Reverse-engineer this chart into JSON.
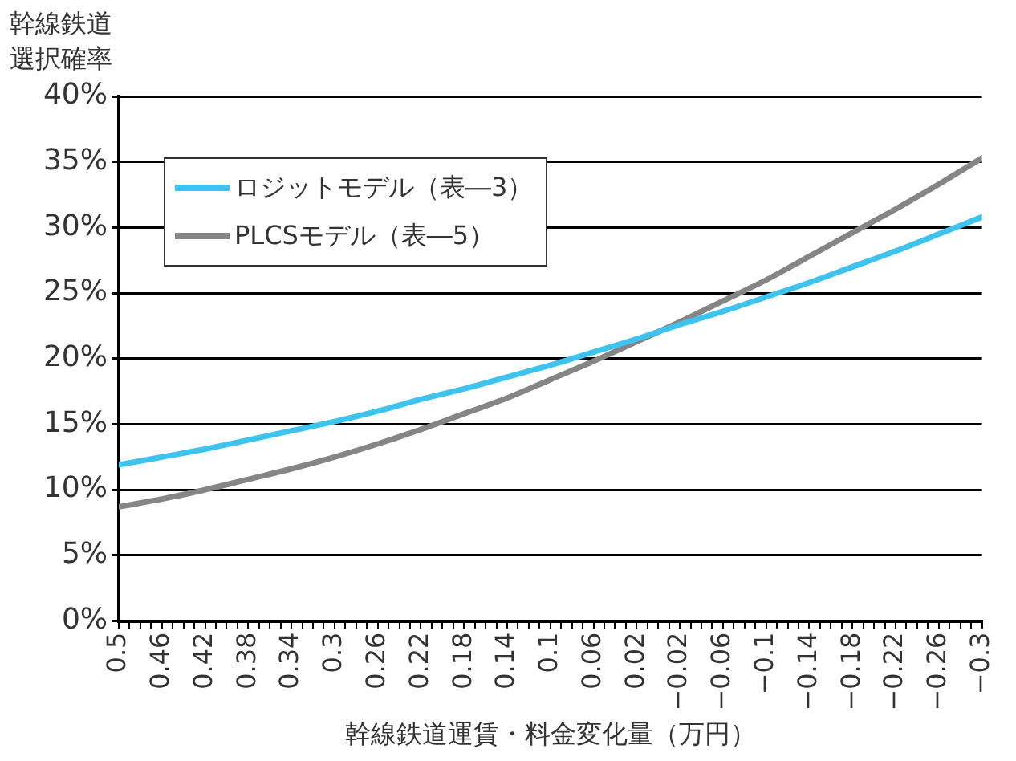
{
  "chart_data": {
    "type": "line",
    "ylabel": "幹線鉄道選択確率",
    "xlabel": "幹線鉄道運賃・料金変化量（万円）",
    "x": [
      0.5,
      0.46,
      0.42,
      0.38,
      0.34,
      0.3,
      0.26,
      0.22,
      0.18,
      0.14,
      0.1,
      0.06,
      0.02,
      -0.02,
      -0.06,
      -0.1,
      -0.14,
      -0.18,
      -0.22,
      -0.26,
      -0.3
    ],
    "series": [
      {
        "name": "ロジットモデル（表―3）",
        "color": "#3ec3ee",
        "values": [
          11.9,
          12.5,
          13.1,
          13.8,
          14.5,
          15.2,
          16.0,
          16.9,
          17.7,
          18.6,
          19.5,
          20.5,
          21.5,
          22.6,
          23.6,
          24.7,
          25.8,
          27.0,
          28.2,
          29.5,
          30.8
        ]
      },
      {
        "name": "PLCSモデル（表―5）",
        "color": "#858585",
        "values": [
          8.7,
          9.3,
          10.0,
          10.8,
          11.6,
          12.5,
          13.5,
          14.6,
          15.8,
          17.0,
          18.4,
          19.8,
          21.3,
          22.8,
          24.4,
          26.0,
          27.8,
          29.6,
          31.4,
          33.3,
          35.3
        ]
      }
    ],
    "xlim": [
      0.5,
      -0.3
    ],
    "xticks": [
      0.5,
      {
        "value": 0.49,
        "label": null
      },
      {
        "value": 0.48,
        "label": null
      },
      {
        "value": 0.47,
        "label": null
      },
      0.46,
      {
        "value": 0.45,
        "label": null
      },
      {
        "value": 0.44,
        "label": null
      },
      {
        "value": 0.43,
        "label": null
      },
      0.42,
      {
        "value": 0.41,
        "label": null
      },
      {
        "value": 0.4,
        "label": null
      },
      {
        "value": 0.39,
        "label": null
      },
      0.38,
      {
        "value": 0.37,
        "label": null
      },
      {
        "value": 0.36,
        "label": null
      },
      {
        "value": 0.35,
        "label": null
      },
      0.34,
      {
        "value": 0.33,
        "label": null
      },
      {
        "value": 0.32,
        "label": null
      },
      {
        "value": 0.31,
        "label": null
      },
      0.3,
      {
        "value": 0.29,
        "label": null
      },
      {
        "value": 0.28,
        "label": null
      },
      {
        "value": 0.27,
        "label": null
      },
      0.26,
      {
        "value": 0.25,
        "label": null
      },
      {
        "value": 0.24,
        "label": null
      },
      {
        "value": 0.23,
        "label": null
      },
      0.22,
      {
        "value": 0.21,
        "label": null
      },
      {
        "value": 0.2,
        "label": null
      },
      {
        "value": 0.19,
        "label": null
      },
      0.18,
      {
        "value": 0.17,
        "label": null
      },
      {
        "value": 0.16,
        "label": null
      },
      {
        "value": 0.15,
        "label": null
      },
      0.14,
      {
        "value": 0.13,
        "label": null
      },
      {
        "value": 0.12,
        "label": null
      },
      {
        "value": 0.11,
        "label": null
      },
      0.1,
      {
        "value": 0.09,
        "label": null
      },
      {
        "value": 0.08,
        "label": null
      },
      {
        "value": 0.07,
        "label": null
      },
      0.06,
      {
        "value": 0.05,
        "label": null
      },
      {
        "value": 0.04,
        "label": null
      },
      {
        "value": 0.03,
        "label": null
      },
      0.02,
      {
        "value": 0.01,
        "label": null
      },
      {
        "value": 0,
        "label": null
      },
      {
        "value": -0.01,
        "label": null
      },
      {
        "value": -0.02,
        "label": "−0.02"
      },
      {
        "value": -0.03,
        "label": null
      },
      {
        "value": -0.04,
        "label": null
      },
      {
        "value": -0.05,
        "label": null
      },
      {
        "value": -0.06,
        "label": "−0.06"
      },
      {
        "value": -0.07,
        "label": null
      },
      {
        "value": -0.08,
        "label": null
      },
      {
        "value": -0.09,
        "label": null
      },
      {
        "value": -0.1,
        "label": "−0.1"
      },
      {
        "value": -0.11,
        "label": null
      },
      {
        "value": -0.12,
        "label": null
      },
      {
        "value": -0.13,
        "label": null
      },
      {
        "value": -0.14,
        "label": "−0.14"
      },
      {
        "value": -0.15,
        "label": null
      },
      {
        "value": -0.16,
        "label": null
      },
      {
        "value": -0.17,
        "label": null
      },
      {
        "value": -0.18,
        "label": "−0.18"
      },
      {
        "value": -0.19,
        "label": null
      },
      {
        "value": -0.2,
        "label": null
      },
      {
        "value": -0.21,
        "label": null
      },
      {
        "value": -0.22,
        "label": "−0.22"
      },
      {
        "value": -0.23,
        "label": null
      },
      {
        "value": -0.24,
        "label": null
      },
      {
        "value": -0.25,
        "label": null
      },
      {
        "value": -0.26,
        "label": "−0.26"
      },
      {
        "value": -0.27,
        "label": null
      },
      {
        "value": -0.28,
        "label": null
      },
      {
        "value": -0.29,
        "label": null
      },
      {
        "value": -0.3,
        "label": "−0.3"
      }
    ],
    "ylim": [
      0,
      40
    ],
    "yticks": [
      {
        "value": 0,
        "label": "0%"
      },
      {
        "value": 5,
        "label": "5%"
      },
      {
        "value": 10,
        "label": "10%"
      },
      {
        "value": 15,
        "label": "15%"
      },
      {
        "value": 20,
        "label": "20%"
      },
      {
        "value": 25,
        "label": "25%"
      },
      {
        "value": 30,
        "label": "30%"
      },
      {
        "value": 35,
        "label": "35%"
      },
      {
        "value": 40,
        "label": "40%"
      }
    ],
    "grid": "y",
    "legend": "top left",
    "marker": "none",
    "line_style": "solid"
  }
}
